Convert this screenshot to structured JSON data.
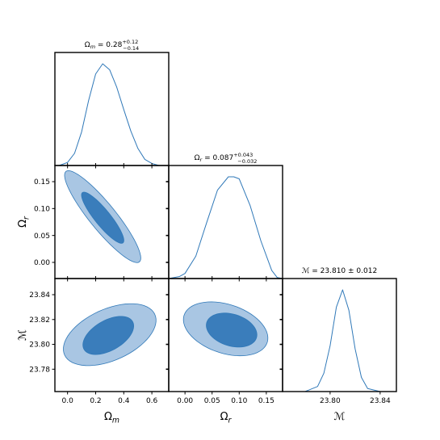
{
  "chart_data": {
    "type": "corner",
    "params": [
      {
        "name": "Ω",
        "sub": "m",
        "range": [
          -0.09,
          0.72
        ],
        "ticks": [
          0.0,
          0.2,
          0.4,
          0.6
        ],
        "tick_labels": [
          "0.0",
          "0.2",
          "0.4",
          "0.6"
        ],
        "title_main": "Ω",
        "title_sub": "m",
        "title_eq": "= 0.28",
        "title_sup": "+0.12",
        "title_inf": "−0.14",
        "mean": 0.28,
        "err_plus": 0.12,
        "err_minus": 0.14
      },
      {
        "name": "Ω",
        "sub": "r",
        "range": [
          -0.03,
          0.18
        ],
        "ticks": [
          0.0,
          0.05,
          0.1,
          0.15
        ],
        "tick_labels": [
          "0.00",
          "0.05",
          "0.10",
          "0.15"
        ],
        "title_main": "Ω",
        "title_sub": "r",
        "title_eq": "= 0.087",
        "title_sup": "+0.043",
        "title_inf": "−0.032",
        "mean": 0.087,
        "err_plus": 0.043,
        "err_minus": 0.032
      },
      {
        "name": "ℳ",
        "sub": "",
        "range": [
          23.762,
          23.853
        ],
        "ticks": [
          23.78,
          23.8,
          23.82,
          23.84
        ],
        "tick_labels": [
          "23.78",
          "23.80",
          "23.82",
          "23.84"
        ],
        "bottom_ticks": [
          23.8,
          23.84
        ],
        "bottom_tick_labels": [
          "23.80",
          "23.84"
        ],
        "title_main": "ℳ",
        "title_sub": "",
        "title_eq": "= 23.810 ± 0.012",
        "title_sup": "",
        "title_inf": "",
        "mean": 23.81,
        "err_plus": 0.012,
        "err_minus": 0.012
      }
    ],
    "diagonal": [
      {
        "x": [
          -0.06,
          0.0,
          0.05,
          0.1,
          0.15,
          0.2,
          0.25,
          0.3,
          0.35,
          0.4,
          0.45,
          0.5,
          0.55,
          0.6,
          0.65,
          0.7
        ],
        "y": [
          0.0,
          0.03,
          0.12,
          0.33,
          0.64,
          0.9,
          1.0,
          0.94,
          0.77,
          0.55,
          0.34,
          0.17,
          0.06,
          0.02,
          0.0,
          0.0
        ]
      },
      {
        "x": [
          -0.03,
          -0.01,
          0.0,
          0.02,
          0.04,
          0.06,
          0.08,
          0.09,
          0.1,
          0.12,
          0.14,
          0.16,
          0.17,
          0.18
        ],
        "y": [
          0.0,
          0.02,
          0.05,
          0.22,
          0.55,
          0.87,
          1.0,
          1.0,
          0.98,
          0.72,
          0.37,
          0.08,
          0.01,
          0.0
        ]
      },
      {
        "x": [
          23.762,
          23.77,
          23.78,
          23.79,
          23.795,
          23.8,
          23.805,
          23.81,
          23.815,
          23.82,
          23.825,
          23.83,
          23.84,
          23.853
        ],
        "y": [
          0.0,
          0.0,
          0.0,
          0.05,
          0.18,
          0.45,
          0.83,
          1.0,
          0.8,
          0.42,
          0.14,
          0.03,
          0.0,
          0.0
        ]
      }
    ],
    "contours": [
      {
        "row": 1,
        "col": 0,
        "levels": [
          {
            "level": "95%",
            "color": "#a9c6e3",
            "center": [
              0.25,
              0.085
            ],
            "semi_major_data": [
              0.27,
              -0.08
            ],
            "semi_minor_data": [
              0.025,
              0.03
            ],
            "samples": 64
          },
          {
            "level": "68%",
            "color": "#3a7dbb",
            "center": [
              0.25,
              0.083
            ],
            "semi_major_data": [
              0.15,
              -0.044
            ],
            "semi_minor_data": [
              0.014,
              0.018
            ],
            "samples": 64
          }
        ]
      },
      {
        "row": 2,
        "col": 0,
        "levels": [
          {
            "level": "95%",
            "color": "#a9c6e3",
            "center": [
              0.3,
              23.8078
            ],
            "semi_major_data": [
              0.32,
              0.0166
            ],
            "semi_minor_data": [
              -0.08,
              0.0186
            ],
            "samples": 64
          },
          {
            "level": "68%",
            "color": "#3a7dbb",
            "center": [
              0.29,
              23.8072
            ],
            "semi_major_data": [
              0.175,
              0.0107
            ],
            "semi_minor_data": [
              -0.045,
              0.011
            ],
            "samples": 64
          }
        ]
      },
      {
        "row": 2,
        "col": 1,
        "levels": [
          {
            "level": "95%",
            "color": "#a9c6e3",
            "center": [
              0.075,
              23.8125
            ],
            "semi_major_data": [
              0.077,
              -0.0105
            ],
            "semi_minor_data": [
              0.012,
              0.019
            ],
            "samples": 64
          },
          {
            "level": "68%",
            "color": "#3a7dbb",
            "center": [
              0.086,
              23.8115
            ],
            "semi_major_data": [
              0.046,
              -0.006
            ],
            "semi_minor_data": [
              0.008,
              0.0123
            ],
            "samples": 64
          }
        ]
      }
    ],
    "line_color": "#2f78b8"
  }
}
